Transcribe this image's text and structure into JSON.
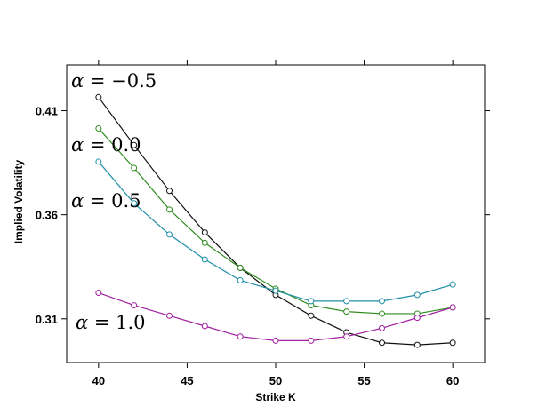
{
  "chart_data": {
    "type": "line",
    "xlabel": "Strike K",
    "ylabel": "Implied Volatility",
    "x": [
      40,
      42,
      44,
      46,
      48,
      50,
      52,
      54,
      56,
      58,
      60
    ],
    "xlim": [
      38.2,
      61.8
    ],
    "ylim": [
      0.289,
      0.432
    ],
    "xticks": [
      {
        "value": 40,
        "label": "40"
      },
      {
        "value": 45,
        "label": "45"
      },
      {
        "value": 50,
        "label": "50"
      },
      {
        "value": 55,
        "label": "55"
      },
      {
        "value": 60,
        "label": "60"
      }
    ],
    "yticks": [
      {
        "value": 0.31,
        "label": "0.31"
      },
      {
        "value": 0.36,
        "label": "0.36"
      },
      {
        "value": 0.41,
        "label": "0.41"
      }
    ],
    "grid": false,
    "series": [
      {
        "name": "α = −0.5",
        "color": "#111111",
        "values": [
          0.4165,
          0.3935,
          0.3715,
          0.3515,
          0.3345,
          0.3215,
          0.3115,
          0.3035,
          0.2985,
          0.2975,
          0.2985
        ]
      },
      {
        "name": "α = 0.0",
        "color": "#2e8b1e",
        "values": [
          0.4015,
          0.3825,
          0.3625,
          0.3465,
          0.3345,
          0.3245,
          0.3165,
          0.3135,
          0.3125,
          0.3125,
          0.3155
        ]
      },
      {
        "name": "α = 0.5",
        "color": "#1f8fa8",
        "values": [
          0.3855,
          0.3655,
          0.3505,
          0.3385,
          0.3285,
          0.3235,
          0.3185,
          0.3185,
          0.3185,
          0.3215,
          0.3265
        ]
      },
      {
        "name": "α = 1.0",
        "color": "#a020a0",
        "values": [
          0.3225,
          0.3165,
          0.3115,
          0.3065,
          0.3015,
          0.2995,
          0.2995,
          0.3015,
          0.3055,
          0.3105,
          0.3155
        ]
      }
    ],
    "annotations": [
      {
        "greek": "α",
        "rest": " = −0.5"
      },
      {
        "greek": "α",
        "rest": " = 0.0"
      },
      {
        "greek": "α",
        "rest": " = 0.5"
      },
      {
        "greek": "α",
        "rest": " = 1.0"
      }
    ]
  }
}
